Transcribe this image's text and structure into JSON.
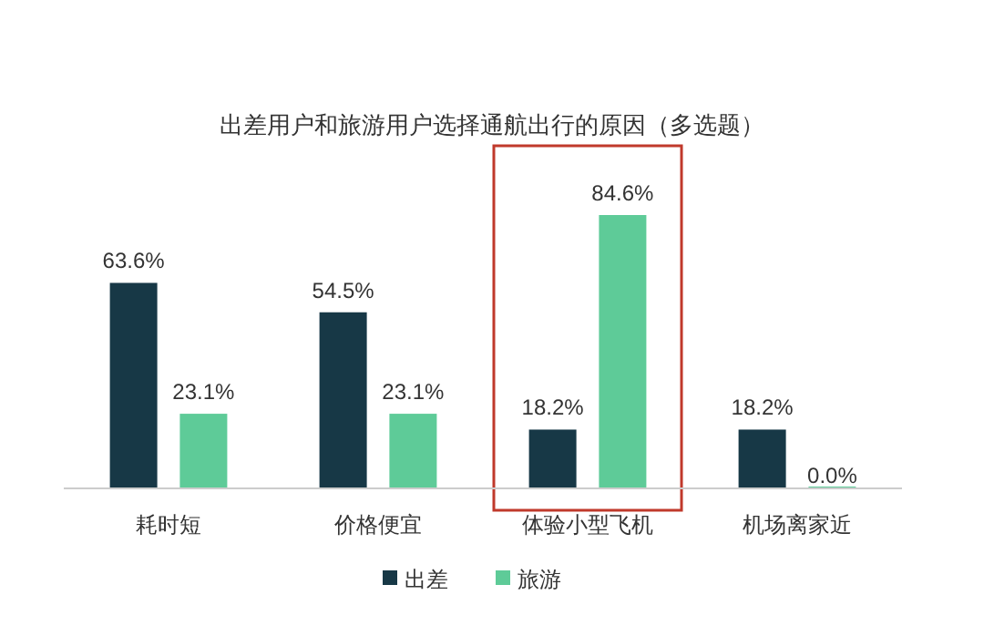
{
  "chart_data": {
    "type": "bar",
    "title": "出差用户和旅游用户选择通航出行的原因（多选题）",
    "categories": [
      "耗时短",
      "价格便宜",
      "体验小型飞机",
      "机场离家近"
    ],
    "series": [
      {
        "name": "出差",
        "color": "#173846",
        "values": [
          63.6,
          54.5,
          18.2,
          18.2
        ],
        "value_labels": [
          "63.6%",
          "54.5%",
          "18.2%",
          "18.2%"
        ]
      },
      {
        "name": "旅游",
        "color": "#5ecb98",
        "values": [
          23.1,
          23.1,
          84.6,
          0.0
        ],
        "value_labels": [
          "23.1%",
          "23.1%",
          "84.6%",
          "0.0%"
        ]
      }
    ],
    "legend": "bottom"
  }
}
